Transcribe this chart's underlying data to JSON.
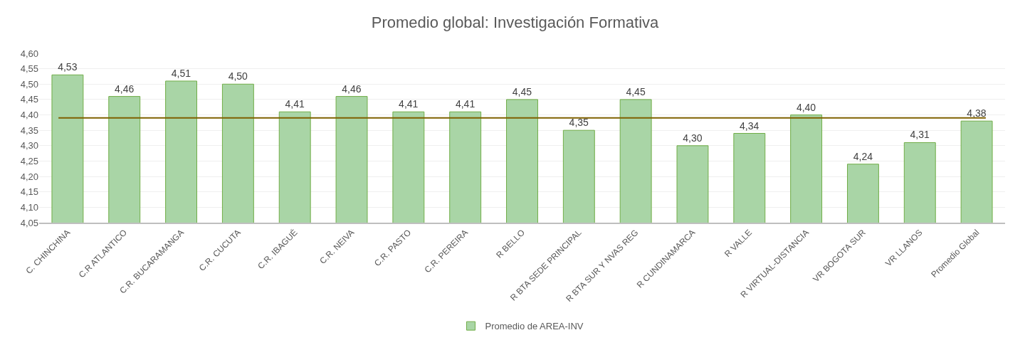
{
  "chart_data": {
    "type": "bar",
    "title": "Promedio global: Investigación Formativa",
    "categories": [
      "C. CHINCHINA",
      "C.R ATLANTICO",
      "C.R. BUCARAMANGA",
      "C.R. CUCUTA",
      "C.R. IBAGUÉ",
      "C.R. NEIVA",
      "C.R. PASTO",
      "C.R. PEREIRA",
      "R BELLO",
      "R BTA SEDE PRINCIPAL",
      "R BTA SUR Y NVAS REG",
      "R CUNDINAMARCA",
      "R VALLE",
      "R VIRTUAL-DISTANCIA",
      "VR BOGOTA SUR",
      "VR LLANOS",
      "Promedio Global"
    ],
    "series": [
      {
        "name": "Promedio de AREA-INV",
        "color": "#a9d5a6",
        "values": [
          4.53,
          4.46,
          4.51,
          4.5,
          4.41,
          4.46,
          4.41,
          4.41,
          4.45,
          4.35,
          4.45,
          4.3,
          4.34,
          4.4,
          4.24,
          4.31,
          4.38
        ],
        "value_labels": [
          "4,53",
          "4,46",
          "4,51",
          "4,50",
          "4,41",
          "4,46",
          "4,41",
          "4,41",
          "4,45",
          "4,35",
          "4,45",
          "4,30",
          "4,34",
          "4,40",
          "4,24",
          "4,31",
          "4,38"
        ]
      }
    ],
    "ylim": [
      4.05,
      4.6
    ],
    "yticks": [
      {
        "value": 4.05,
        "label": "4,05"
      },
      {
        "value": 4.1,
        "label": "4,10"
      },
      {
        "value": 4.15,
        "label": "4,15"
      },
      {
        "value": 4.2,
        "label": "4,20"
      },
      {
        "value": 4.25,
        "label": "4,25"
      },
      {
        "value": 4.3,
        "label": "4,30"
      },
      {
        "value": 4.35,
        "label": "4,35"
      },
      {
        "value": 4.4,
        "label": "4,40"
      },
      {
        "value": 4.45,
        "label": "4,45"
      },
      {
        "value": 4.5,
        "label": "4,50"
      },
      {
        "value": 4.55,
        "label": "4,55"
      },
      {
        "value": 4.6,
        "label": "4,60"
      }
    ],
    "ref_lines": [
      {
        "axis": "y",
        "value": 4.39,
        "color": "#7f6000"
      }
    ],
    "grid": "y",
    "legend": "bottom"
  }
}
